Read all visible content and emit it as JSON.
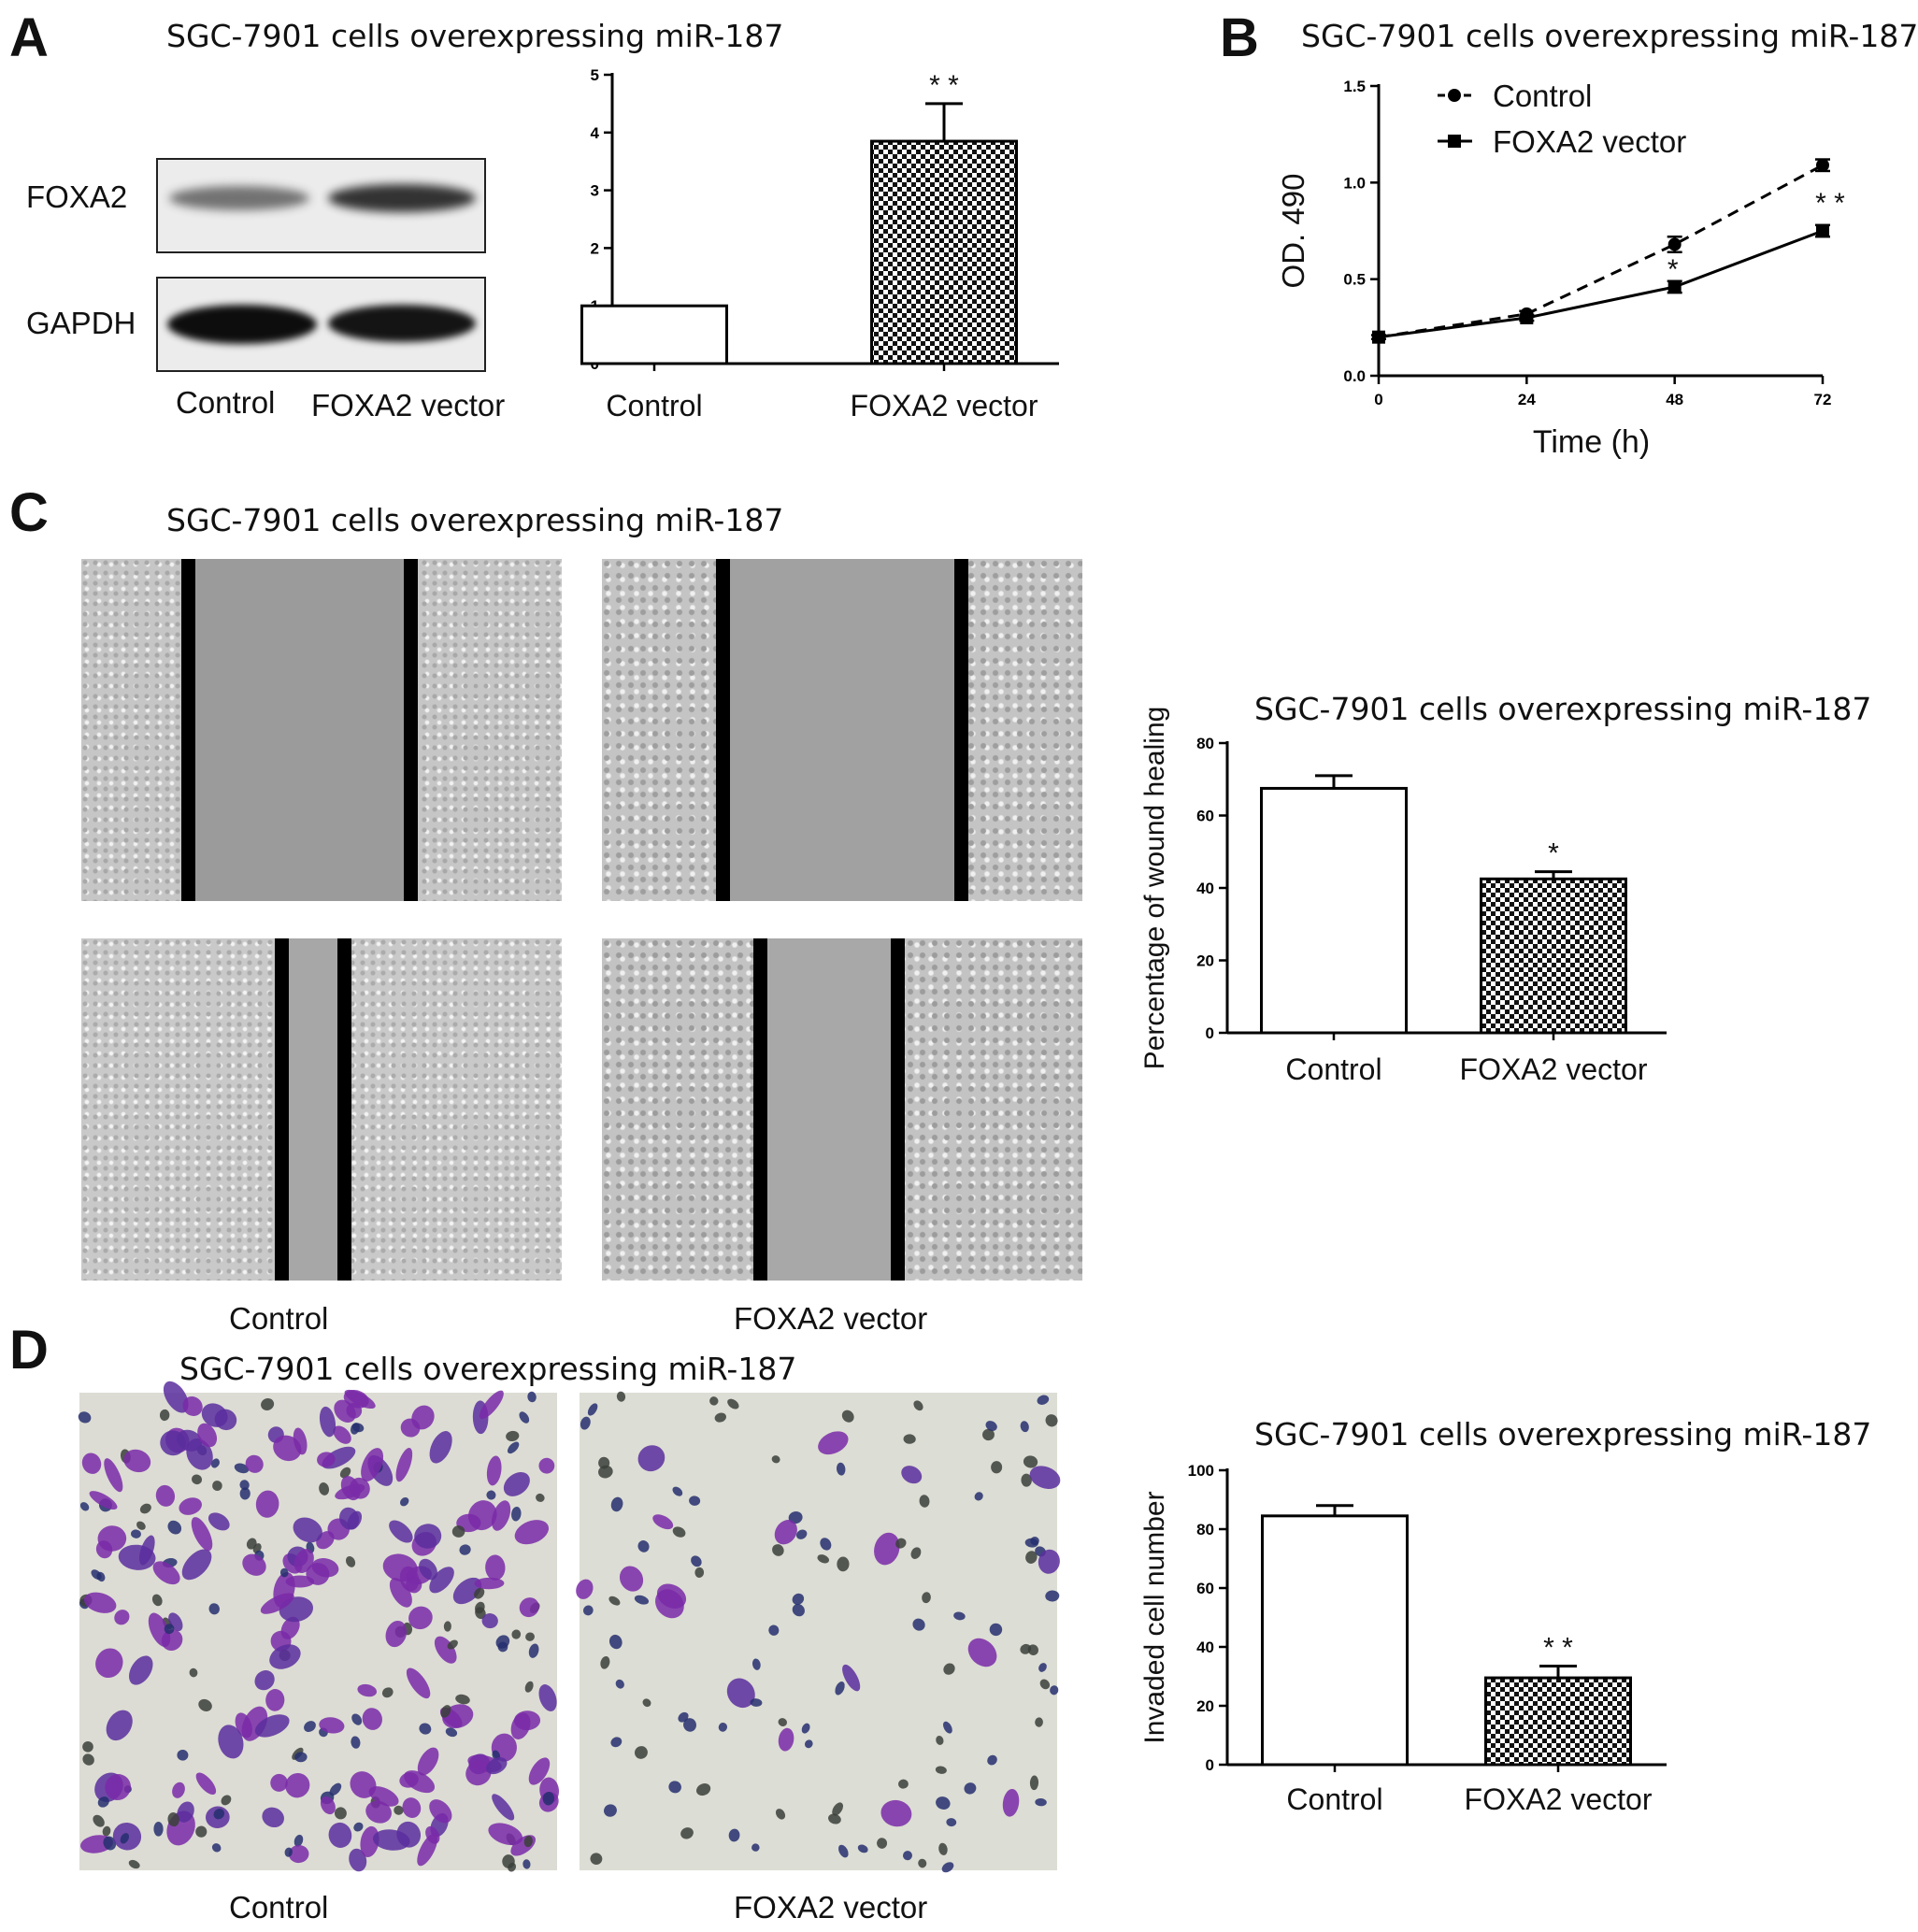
{
  "panel_labels": {
    "a": "A",
    "b": "B",
    "c": "C",
    "d": "D"
  },
  "titles": {
    "a": "SGC-7901 cells overexpressing miR-187",
    "b": "SGC-7901 cells overexpressing miR-187",
    "c": "SGC-7901 cells overexpressing miR-187",
    "c_chart": "SGC-7901 cells overexpressing miR-187",
    "d": "SGC-7901 cells overexpressing miR-187",
    "d_chart": "SGC-7901 cells overexpressing miR-187"
  },
  "blot": {
    "rows": [
      "FOXA2",
      "GAPDH"
    ],
    "lanes": [
      "Control",
      "FOXA2 vector"
    ]
  },
  "images": {
    "c": {
      "control": "Control",
      "foxa2": "FOXA2 vector"
    },
    "d": {
      "control": "Control",
      "foxa2": "FOXA2 vector"
    }
  },
  "colors": {
    "stain": "#7a2aa8",
    "nucleus": "#262f6e",
    "photo_bg": "#d9dbd4",
    "gap": "#9a9a9a"
  },
  "chart_data": [
    {
      "id": "a-bar",
      "type": "bar",
      "categories": [
        "Control",
        "FOXA2 vector"
      ],
      "values": [
        1.0,
        3.85
      ],
      "errors": [
        0,
        0.65
      ],
      "annotations": [
        "",
        "* *"
      ],
      "ylim": [
        0,
        5
      ],
      "yticks": [
        "0",
        "1",
        "2",
        "3",
        "4",
        "5"
      ],
      "title": "",
      "xlabel": "",
      "ylabel": ""
    },
    {
      "id": "b-line",
      "type": "line",
      "title": "SGC-7901 cells overexpressing miR-187",
      "xlabel": "Time (h)",
      "ylabel": "OD. 490",
      "x": [
        0,
        24,
        48,
        72
      ],
      "xticks": [
        "0",
        "24",
        "48",
        "72"
      ],
      "ylim": [
        0,
        1.5
      ],
      "yticks": [
        "0.0",
        "0.5",
        "1.0",
        "1.5"
      ],
      "legend_position": "top-left",
      "series": [
        {
          "name": "Control",
          "values": [
            0.2,
            0.32,
            0.68,
            1.09
          ],
          "errors": [
            0.01,
            0.015,
            0.04,
            0.03
          ],
          "marker": "circle",
          "dash": true
        },
        {
          "name": "FOXA2 vector",
          "values": [
            0.2,
            0.3,
            0.46,
            0.75
          ],
          "errors": [
            0.01,
            0.015,
            0.03,
            0.03
          ],
          "marker": "square",
          "dash": false
        }
      ],
      "annotations": [
        {
          "x": 48,
          "text": "*"
        },
        {
          "x": 72,
          "text": "* *"
        }
      ]
    },
    {
      "id": "c-bar",
      "type": "bar",
      "title": "SGC-7901 cells overexpressing miR-187",
      "ylabel": "Percentage of wound healing",
      "xlabel": "",
      "categories": [
        "Control",
        "FOXA2 vector"
      ],
      "values": [
        67.5,
        42.5
      ],
      "errors": [
        3.5,
        2.0
      ],
      "annotations": [
        "",
        "*"
      ],
      "ylim": [
        0,
        80
      ],
      "yticks": [
        "0",
        "20",
        "40",
        "60",
        "80"
      ]
    },
    {
      "id": "d-bar",
      "type": "bar",
      "title": "SGC-7901 cells overexpressing miR-187",
      "ylabel": "Invaded cell number",
      "xlabel": "",
      "categories": [
        "Control",
        "FOXA2 vector"
      ],
      "values": [
        84.5,
        29.5
      ],
      "errors": [
        3.5,
        4.0
      ],
      "annotations": [
        "",
        "* *"
      ],
      "ylim": [
        0,
        100
      ],
      "yticks": [
        "0",
        "20",
        "40",
        "60",
        "80",
        "100"
      ]
    }
  ]
}
